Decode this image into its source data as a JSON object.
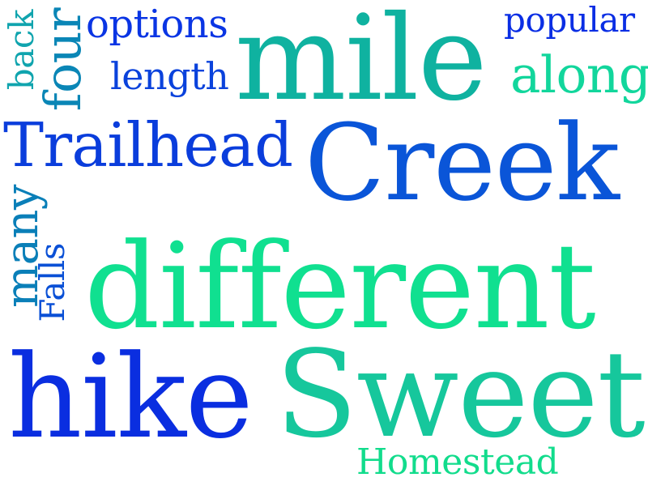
{
  "words": [
    {
      "text": "different",
      "color": "#10e090"
    },
    {
      "text": "Sweet",
      "color": "#16c79c"
    },
    {
      "text": "hike",
      "color": "#0a2ee0"
    },
    {
      "text": "Creek",
      "color": "#0a55d8"
    },
    {
      "text": "mile",
      "color": "#0fb2a0"
    },
    {
      "text": "Trailhead",
      "color": "#0a3ddc"
    },
    {
      "text": "Homestead",
      "color": "#12dc8c"
    },
    {
      "text": "options",
      "color": "#0a35e4"
    },
    {
      "text": "length",
      "color": "#0a42dc"
    },
    {
      "text": "along",
      "color": "#12d69c"
    },
    {
      "text": "popular",
      "color": "#0a2ee4"
    },
    {
      "text": "four",
      "color": "#0a86b6"
    },
    {
      "text": "back",
      "color": "#10a4ae"
    },
    {
      "text": "many",
      "color": "#0a7fb8"
    },
    {
      "text": "Falls",
      "color": "#0a50d6"
    }
  ]
}
